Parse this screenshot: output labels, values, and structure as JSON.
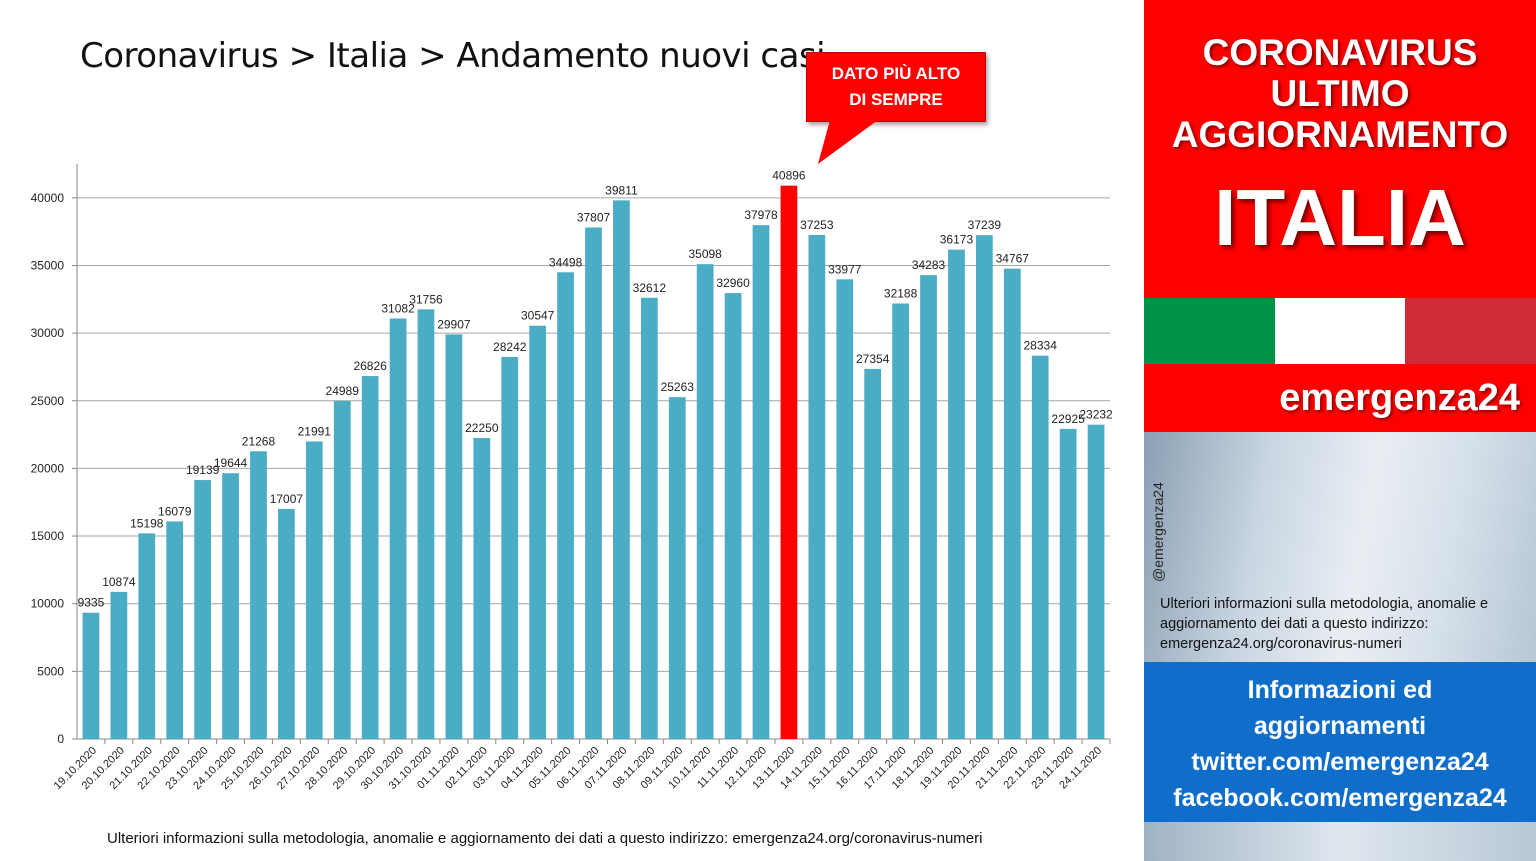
{
  "main_title": "Coronavirus > Italia > Andamento nuovi casi",
  "callout": {
    "line1": "DATO PIÙ ALTO",
    "line2": "DI SEMPRE",
    "color": "#ff0000"
  },
  "footer_note": "Ulteriori informazioni sulla metodologia, anomalie e aggiornamento dei dati a questo indirizzo: emergenza24.org/coronavirus-numeri",
  "sidebar": {
    "line1": "CORONAVIRUS",
    "line2": "ULTIMO",
    "line3": "AGGIORNAMENTO",
    "country": "ITALIA",
    "brand": "emergenza24",
    "handle": "@emergenza24",
    "note": "Ulteriori informazioni sulla metodologia, anomalie e aggiornamento dei dati a questo indirizzo: emergenza24.org/coronavirus-numeri",
    "info_lines": [
      "Informazioni ed",
      "aggiornamenti",
      "twitter.com/emergenza24",
      "facebook.com/emergenza24"
    ],
    "flag_colors": [
      "#009246",
      "#ffffff",
      "#ce2b37"
    ],
    "red": "#ff0000",
    "blue": "#0f6ec9"
  },
  "chart_data": {
    "type": "bar",
    "categories": [
      "19.10.2020",
      "20.10.2020",
      "21.10.2020",
      "22.10.2020",
      "23.10.2020",
      "24.10.2020",
      "25.10.2020",
      "26.10.2020",
      "27.10.2020",
      "28.10.2020",
      "29.10.2020",
      "30.10.2020",
      "31.10.2020",
      "01.11.2020",
      "02.11.2020",
      "03.11.2020",
      "04.11.2020",
      "05.11.2020",
      "06.11.2020",
      "07.11.2020",
      "08.11.2020",
      "09.11.2020",
      "10.11.2020",
      "11.11.2020",
      "12.11.2020",
      "13.11.2020",
      "14.11.2020",
      "15.11.2020",
      "16.11.2020",
      "17.11.2020",
      "18.11.2020",
      "19.11.2020",
      "20.11.2020",
      "21.11.2020",
      "22.11.2020",
      "23.11.2020",
      "24.11.2020"
    ],
    "values": [
      9335,
      10874,
      15198,
      16079,
      19139,
      19644,
      21268,
      17007,
      21991,
      24989,
      26826,
      31082,
      31756,
      29907,
      22250,
      28242,
      30547,
      34498,
      37807,
      39811,
      32612,
      25263,
      35098,
      32960,
      37978,
      40896,
      37253,
      33977,
      27354,
      32188,
      34283,
      36173,
      37239,
      34767,
      28334,
      22925,
      23232
    ],
    "highlight_category": "13.11.2020",
    "bar_color": "#4bacc6",
    "highlight_color": "#ff0000",
    "yticks": [
      0,
      5000,
      10000,
      15000,
      20000,
      25000,
      30000,
      35000,
      40000
    ],
    "ylim": [
      0,
      42500
    ],
    "grid": true,
    "legend": "none"
  }
}
